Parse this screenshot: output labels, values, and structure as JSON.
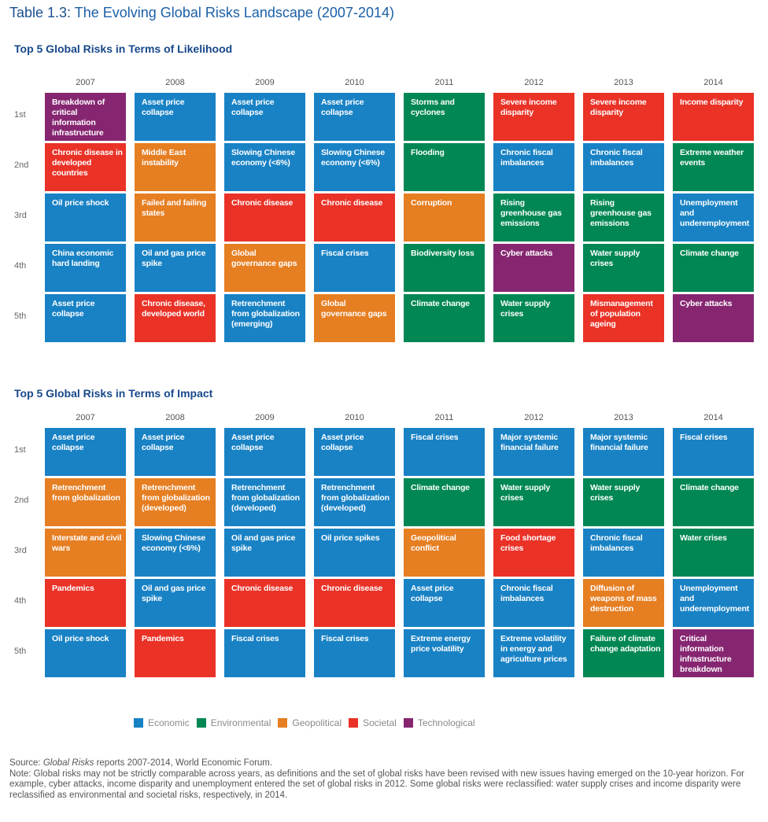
{
  "title": {
    "label": "Table 1.3:",
    "text": "The Evolving Global Risks Landscape (2007-2014)"
  },
  "categories": {
    "economic": {
      "name": "Economic",
      "color": "#1882c5"
    },
    "environmental": {
      "name": "Environmental",
      "color": "#008754"
    },
    "geopolitical": {
      "name": "Geopolitical",
      "color": "#e67e22"
    },
    "societal": {
      "name": "Societal",
      "color": "#ea3227"
    },
    "technological": {
      "name": "Technological",
      "color": "#862671"
    }
  },
  "chart_data": [
    {
      "type": "table",
      "title": "Top 5 Global Risks in Terms of Likelihood",
      "years": [
        "2007",
        "2008",
        "2009",
        "2010",
        "2011",
        "2012",
        "2013",
        "2014"
      ],
      "ranks": [
        "1st",
        "2nd",
        "3rd",
        "4th",
        "5th"
      ],
      "columns": [
        [
          {
            "text": "Breakdown of critical information infrastructure",
            "category": "technological"
          },
          {
            "text": "Chronic disease in developed countries",
            "category": "societal"
          },
          {
            "text": "Oil price shock",
            "category": "economic"
          },
          {
            "text": "China economic hard landing",
            "category": "economic"
          },
          {
            "text": "Asset price collapse",
            "category": "economic"
          }
        ],
        [
          {
            "text": "Asset price collapse",
            "category": "economic"
          },
          {
            "text": "Middle East instability",
            "category": "geopolitical"
          },
          {
            "text": "Failed and failing states",
            "category": "geopolitical"
          },
          {
            "text": "Oil and gas price spike",
            "category": "economic"
          },
          {
            "text": "Chronic disease, developed world",
            "category": "societal"
          }
        ],
        [
          {
            "text": "Asset price collapse",
            "category": "economic"
          },
          {
            "text": "Slowing Chinese economy (<6%)",
            "category": "economic"
          },
          {
            "text": "Chronic disease",
            "category": "societal"
          },
          {
            "text": "Global governance gaps",
            "category": "geopolitical"
          },
          {
            "text": "Retrenchment from globalization (emerging)",
            "category": "economic"
          }
        ],
        [
          {
            "text": "Asset price collapse",
            "category": "economic"
          },
          {
            "text": "Slowing Chinese economy (<6%)",
            "category": "economic"
          },
          {
            "text": "Chronic disease",
            "category": "societal"
          },
          {
            "text": "Fiscal crises",
            "category": "economic"
          },
          {
            "text": "Global governance gaps",
            "category": "geopolitical"
          }
        ],
        [
          {
            "text": "Storms and cyclones",
            "category": "environmental"
          },
          {
            "text": "Flooding",
            "category": "environmental"
          },
          {
            "text": "Corruption",
            "category": "geopolitical"
          },
          {
            "text": "Biodiversity loss",
            "category": "environmental"
          },
          {
            "text": "Climate change",
            "category": "environmental"
          }
        ],
        [
          {
            "text": "Severe income disparity",
            "category": "societal"
          },
          {
            "text": "Chronic fiscal imbalances",
            "category": "economic"
          },
          {
            "text": "Rising greenhouse gas emissions",
            "category": "environmental"
          },
          {
            "text": "Cyber attacks",
            "category": "technological"
          },
          {
            "text": "Water supply crises",
            "category": "environmental"
          }
        ],
        [
          {
            "text": "Severe income disparity",
            "category": "societal"
          },
          {
            "text": "Chronic fiscal imbalances",
            "category": "economic"
          },
          {
            "text": "Rising greenhouse gas emissions",
            "category": "environmental"
          },
          {
            "text": "Water supply crises",
            "category": "environmental"
          },
          {
            "text": "Mismanagement of population ageing",
            "category": "societal"
          }
        ],
        [
          {
            "text": "Income disparity",
            "category": "societal"
          },
          {
            "text": "Extreme weather events",
            "category": "environmental"
          },
          {
            "text": "Unemployment and underemployment",
            "category": "economic"
          },
          {
            "text": "Climate change",
            "category": "environmental"
          },
          {
            "text": "Cyber attacks",
            "category": "technological"
          }
        ]
      ]
    },
    {
      "type": "table",
      "title": "Top 5 Global Risks in Terms of Impact",
      "years": [
        "2007",
        "2008",
        "2009",
        "2010",
        "2011",
        "2012",
        "2013",
        "2014"
      ],
      "ranks": [
        "1st",
        "2nd",
        "3rd",
        "4th",
        "5th"
      ],
      "columns": [
        [
          {
            "text": "Asset price collapse",
            "category": "economic"
          },
          {
            "text": "Retrenchment from globalization",
            "category": "geopolitical"
          },
          {
            "text": "Interstate and civil wars",
            "category": "geopolitical"
          },
          {
            "text": "Pandemics",
            "category": "societal"
          },
          {
            "text": "Oil price shock",
            "category": "economic"
          }
        ],
        [
          {
            "text": "Asset price collapse",
            "category": "economic"
          },
          {
            "text": "Retrenchment from globalization (developed)",
            "category": "geopolitical"
          },
          {
            "text": "Slowing Chinese economy (<6%)",
            "category": "economic"
          },
          {
            "text": "Oil and gas price spike",
            "category": "economic"
          },
          {
            "text": "Pandemics",
            "category": "societal"
          }
        ],
        [
          {
            "text": "Asset price collapse",
            "category": "economic"
          },
          {
            "text": "Retrenchment from globalization (developed)",
            "category": "economic"
          },
          {
            "text": "Oil and gas price spike",
            "category": "economic"
          },
          {
            "text": "Chronic disease",
            "category": "societal"
          },
          {
            "text": "Fiscal crises",
            "category": "economic"
          }
        ],
        [
          {
            "text": "Asset price collapse",
            "category": "economic"
          },
          {
            "text": "Retrenchment from globalization (developed)",
            "category": "economic"
          },
          {
            "text": "Oil price spikes",
            "category": "economic"
          },
          {
            "text": "Chronic disease",
            "category": "societal"
          },
          {
            "text": "Fiscal crises",
            "category": "economic"
          }
        ],
        [
          {
            "text": "Fiscal crises",
            "category": "economic"
          },
          {
            "text": "Climate change",
            "category": "environmental"
          },
          {
            "text": "Geopolitical conflict",
            "category": "geopolitical"
          },
          {
            "text": "Asset price collapse",
            "category": "economic"
          },
          {
            "text": "Extreme energy price volatility",
            "category": "economic"
          }
        ],
        [
          {
            "text": "Major systemic financial failure",
            "category": "economic"
          },
          {
            "text": "Water supply crises",
            "category": "environmental"
          },
          {
            "text": "Food shortage crises",
            "category": "societal"
          },
          {
            "text": "Chronic fiscal imbalances",
            "category": "economic"
          },
          {
            "text": "Extreme volatility in energy and agriculture prices",
            "category": "economic"
          }
        ],
        [
          {
            "text": "Major systemic financial failure",
            "category": "economic"
          },
          {
            "text": "Water supply crises",
            "category": "environmental"
          },
          {
            "text": "Chronic fiscal imbalances",
            "category": "economic"
          },
          {
            "text": "Diffusion of weapons of mass destruction",
            "category": "geopolitical"
          },
          {
            "text": "Failure of climate change adaptation",
            "category": "environmental"
          }
        ],
        [
          {
            "text": "Fiscal crises",
            "category": "economic"
          },
          {
            "text": "Climate change",
            "category": "environmental"
          },
          {
            "text": "Water crises",
            "category": "environmental"
          },
          {
            "text": "Unemployment and underemployment",
            "category": "economic"
          },
          {
            "text": "Critical information infrastructure breakdown",
            "category": "technological"
          }
        ]
      ]
    }
  ],
  "legend": [
    "economic",
    "environmental",
    "geopolitical",
    "societal",
    "technological"
  ],
  "footnote": {
    "source_prefix": "Source: ",
    "source_italic": "Global Risks",
    "source_suffix": " reports 2007-2014, World Economic Forum.",
    "note": "Note: Global risks may not be strictly comparable across years, as definitions and the set of global risks have been revised with new issues having emerged on the 10-year horizon. For example, cyber attacks, income disparity and unemployment entered the set of global risks in 2012. Some global risks were reclassified: water supply crises and income disparity were reclassified as environmental and societal risks, respectively, in 2014."
  }
}
